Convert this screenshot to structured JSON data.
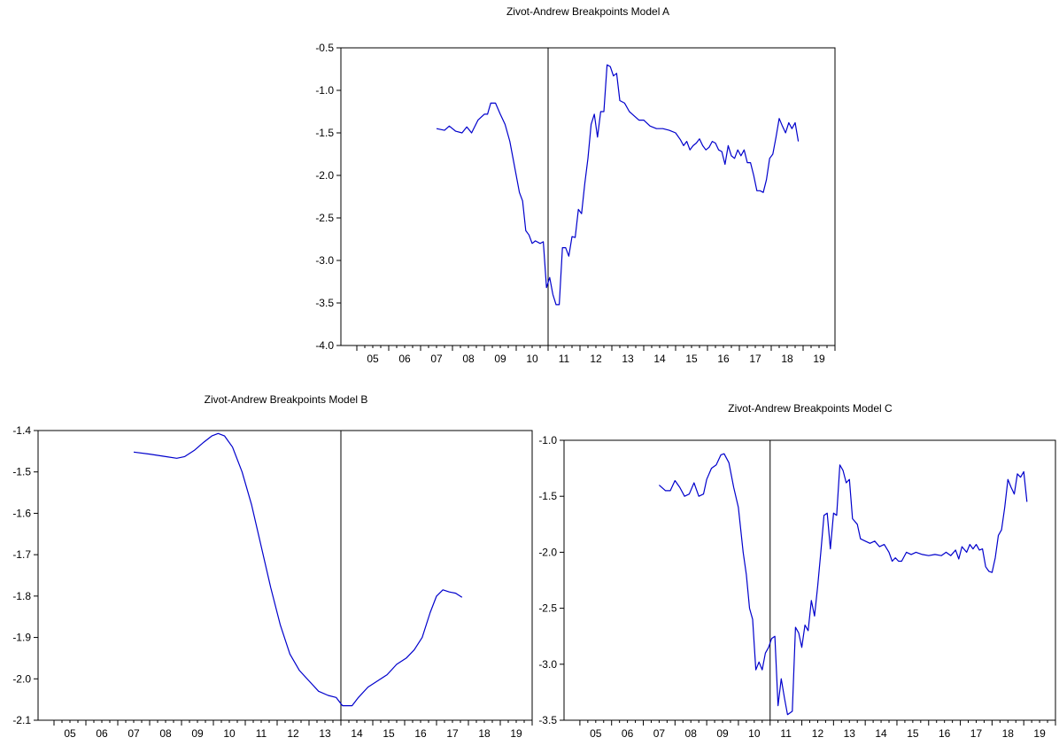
{
  "chart_data": [
    {
      "type": "line",
      "title": "Zivot-Andrew Breakpoints Model A",
      "xlabel": "",
      "ylabel": "",
      "x_range": [
        2004.5,
        2020.0
      ],
      "ylim": [
        -4.0,
        -0.5
      ],
      "y_ticks": [
        "-0.5",
        "-1.0",
        "-1.5",
        "-2.0",
        "-2.5",
        "-3.0",
        "-3.5",
        "-4.0"
      ],
      "x_ticks": [
        "05",
        "06",
        "07",
        "08",
        "09",
        "10",
        "11",
        "12",
        "13",
        "14",
        "15",
        "16",
        "17",
        "18",
        "19"
      ],
      "breakpoint": 2011.0,
      "grid": false,
      "series": [
        {
          "color": "#0000cc",
          "points": [
            [
              2007.5,
              -1.45
            ],
            [
              2007.75,
              -1.47
            ],
            [
              2007.9,
              -1.42
            ],
            [
              2008.1,
              -1.48
            ],
            [
              2008.3,
              -1.5
            ],
            [
              2008.45,
              -1.43
            ],
            [
              2008.6,
              -1.5
            ],
            [
              2008.8,
              -1.35
            ],
            [
              2009.0,
              -1.28
            ],
            [
              2009.1,
              -1.28
            ],
            [
              2009.2,
              -1.15
            ],
            [
              2009.35,
              -1.15
            ],
            [
              2009.5,
              -1.28
            ],
            [
              2009.65,
              -1.4
            ],
            [
              2009.8,
              -1.6
            ],
            [
              2009.95,
              -1.9
            ],
            [
              2010.1,
              -2.2
            ],
            [
              2010.2,
              -2.3
            ],
            [
              2010.3,
              -2.65
            ],
            [
              2010.4,
              -2.7
            ],
            [
              2010.5,
              -2.8
            ],
            [
              2010.6,
              -2.77
            ],
            [
              2010.75,
              -2.8
            ],
            [
              2010.85,
              -2.78
            ],
            [
              2010.95,
              -3.32
            ],
            [
              2011.05,
              -3.2
            ],
            [
              2011.15,
              -3.4
            ],
            [
              2011.25,
              -3.52
            ],
            [
              2011.35,
              -3.52
            ],
            [
              2011.45,
              -2.85
            ],
            [
              2011.55,
              -2.85
            ],
            [
              2011.65,
              -2.95
            ],
            [
              2011.75,
              -2.72
            ],
            [
              2011.85,
              -2.73
            ],
            [
              2011.95,
              -2.4
            ],
            [
              2012.05,
              -2.45
            ],
            [
              2012.15,
              -2.1
            ],
            [
              2012.25,
              -1.8
            ],
            [
              2012.35,
              -1.4
            ],
            [
              2012.45,
              -1.28
            ],
            [
              2012.55,
              -1.55
            ],
            [
              2012.65,
              -1.25
            ],
            [
              2012.75,
              -1.25
            ],
            [
              2012.85,
              -0.7
            ],
            [
              2012.95,
              -0.72
            ],
            [
              2013.05,
              -0.83
            ],
            [
              2013.15,
              -0.8
            ],
            [
              2013.25,
              -1.12
            ],
            [
              2013.4,
              -1.15
            ],
            [
              2013.55,
              -1.25
            ],
            [
              2013.7,
              -1.3
            ],
            [
              2013.85,
              -1.35
            ],
            [
              2014.0,
              -1.35
            ],
            [
              2014.2,
              -1.42
            ],
            [
              2014.4,
              -1.45
            ],
            [
              2014.6,
              -1.45
            ],
            [
              2014.8,
              -1.47
            ],
            [
              2015.0,
              -1.5
            ],
            [
              2015.15,
              -1.58
            ],
            [
              2015.25,
              -1.65
            ],
            [
              2015.35,
              -1.6
            ],
            [
              2015.45,
              -1.7
            ],
            [
              2015.55,
              -1.65
            ],
            [
              2015.65,
              -1.62
            ],
            [
              2015.75,
              -1.57
            ],
            [
              2015.85,
              -1.65
            ],
            [
              2015.95,
              -1.7
            ],
            [
              2016.05,
              -1.67
            ],
            [
              2016.15,
              -1.6
            ],
            [
              2016.25,
              -1.62
            ],
            [
              2016.35,
              -1.7
            ],
            [
              2016.45,
              -1.72
            ],
            [
              2016.55,
              -1.87
            ],
            [
              2016.65,
              -1.65
            ],
            [
              2016.75,
              -1.77
            ],
            [
              2016.85,
              -1.8
            ],
            [
              2016.95,
              -1.7
            ],
            [
              2017.05,
              -1.77
            ],
            [
              2017.15,
              -1.7
            ],
            [
              2017.25,
              -1.85
            ],
            [
              2017.35,
              -1.85
            ],
            [
              2017.45,
              -2.0
            ],
            [
              2017.55,
              -2.18
            ],
            [
              2017.65,
              -2.18
            ],
            [
              2017.75,
              -2.2
            ],
            [
              2017.85,
              -2.05
            ],
            [
              2017.95,
              -1.8
            ],
            [
              2018.05,
              -1.75
            ],
            [
              2018.15,
              -1.55
            ],
            [
              2018.25,
              -1.33
            ],
            [
              2018.35,
              -1.42
            ],
            [
              2018.45,
              -1.5
            ],
            [
              2018.55,
              -1.38
            ],
            [
              2018.65,
              -1.45
            ],
            [
              2018.75,
              -1.38
            ],
            [
              2018.85,
              -1.6
            ]
          ]
        }
      ]
    },
    {
      "type": "line",
      "title": "Zivot-Andrew Breakpoints Model B",
      "xlabel": "",
      "ylabel": "",
      "x_range": [
        2004.5,
        2020.0
      ],
      "ylim": [
        -2.1,
        -1.4
      ],
      "y_ticks": [
        "-1.4",
        "-1.5",
        "-1.6",
        "-1.7",
        "-1.8",
        "-1.9",
        "-2.0",
        "-2.1"
      ],
      "x_ticks": [
        "05",
        "06",
        "07",
        "08",
        "09",
        "10",
        "11",
        "12",
        "13",
        "14",
        "15",
        "16",
        "17",
        "18",
        "19"
      ],
      "breakpoint": 2014.0,
      "grid": false,
      "series": [
        {
          "color": "#0000cc",
          "points": [
            [
              2007.5,
              -1.452
            ],
            [
              2008.0,
              -1.457
            ],
            [
              2008.5,
              -1.463
            ],
            [
              2008.85,
              -1.467
            ],
            [
              2009.1,
              -1.463
            ],
            [
              2009.4,
              -1.448
            ],
            [
              2009.7,
              -1.428
            ],
            [
              2009.95,
              -1.413
            ],
            [
              2010.15,
              -1.407
            ],
            [
              2010.35,
              -1.413
            ],
            [
              2010.6,
              -1.44
            ],
            [
              2010.9,
              -1.5
            ],
            [
              2011.2,
              -1.58
            ],
            [
              2011.5,
              -1.68
            ],
            [
              2011.8,
              -1.78
            ],
            [
              2012.1,
              -1.87
            ],
            [
              2012.4,
              -1.94
            ],
            [
              2012.7,
              -1.98
            ],
            [
              2013.0,
              -2.005
            ],
            [
              2013.3,
              -2.03
            ],
            [
              2013.6,
              -2.04
            ],
            [
              2013.85,
              -2.045
            ],
            [
              2014.05,
              -2.065
            ],
            [
              2014.35,
              -2.065
            ],
            [
              2014.55,
              -2.045
            ],
            [
              2014.85,
              -2.02
            ],
            [
              2015.15,
              -2.005
            ],
            [
              2015.45,
              -1.99
            ],
            [
              2015.75,
              -1.965
            ],
            [
              2016.05,
              -1.95
            ],
            [
              2016.3,
              -1.93
            ],
            [
              2016.55,
              -1.9
            ],
            [
              2016.8,
              -1.84
            ],
            [
              2017.0,
              -1.8
            ],
            [
              2017.2,
              -1.785
            ],
            [
              2017.4,
              -1.79
            ],
            [
              2017.6,
              -1.793
            ],
            [
              2017.8,
              -1.803
            ]
          ]
        }
      ]
    },
    {
      "type": "line",
      "title": "Zivot-Andrew Breakpoints Model C",
      "xlabel": "",
      "ylabel": "",
      "x_range": [
        2004.5,
        2020.0
      ],
      "ylim": [
        -3.5,
        -1.0
      ],
      "y_ticks": [
        "-1.0",
        "-1.5",
        "-2.0",
        "-2.5",
        "-3.0",
        "-3.5"
      ],
      "x_ticks": [
        "05",
        "06",
        "07",
        "08",
        "09",
        "10",
        "11",
        "12",
        "13",
        "14",
        "15",
        "16",
        "17",
        "18",
        "19"
      ],
      "breakpoint": 2011.0,
      "grid": false,
      "series": [
        {
          "color": "#0000cc",
          "points": [
            [
              2007.5,
              -1.4
            ],
            [
              2007.7,
              -1.45
            ],
            [
              2007.85,
              -1.45
            ],
            [
              2008.0,
              -1.36
            ],
            [
              2008.15,
              -1.42
            ],
            [
              2008.3,
              -1.5
            ],
            [
              2008.45,
              -1.48
            ],
            [
              2008.6,
              -1.38
            ],
            [
              2008.75,
              -1.5
            ],
            [
              2008.9,
              -1.48
            ],
            [
              2009.0,
              -1.35
            ],
            [
              2009.15,
              -1.25
            ],
            [
              2009.3,
              -1.22
            ],
            [
              2009.45,
              -1.13
            ],
            [
              2009.55,
              -1.12
            ],
            [
              2009.7,
              -1.2
            ],
            [
              2009.85,
              -1.42
            ],
            [
              2010.0,
              -1.6
            ],
            [
              2010.15,
              -2.0
            ],
            [
              2010.25,
              -2.2
            ],
            [
              2010.35,
              -2.5
            ],
            [
              2010.45,
              -2.6
            ],
            [
              2010.55,
              -3.05
            ],
            [
              2010.65,
              -2.98
            ],
            [
              2010.75,
              -3.05
            ],
            [
              2010.85,
              -2.9
            ],
            [
              2010.95,
              -2.85
            ],
            [
              2011.05,
              -2.77
            ],
            [
              2011.15,
              -2.75
            ],
            [
              2011.25,
              -3.37
            ],
            [
              2011.35,
              -3.13
            ],
            [
              2011.45,
              -3.3
            ],
            [
              2011.55,
              -3.45
            ],
            [
              2011.7,
              -3.42
            ],
            [
              2011.8,
              -2.67
            ],
            [
              2011.9,
              -2.72
            ],
            [
              2012.0,
              -2.85
            ],
            [
              2012.1,
              -2.65
            ],
            [
              2012.2,
              -2.7
            ],
            [
              2012.3,
              -2.43
            ],
            [
              2012.4,
              -2.57
            ],
            [
              2012.5,
              -2.3
            ],
            [
              2012.6,
              -2.0
            ],
            [
              2012.7,
              -1.67
            ],
            [
              2012.8,
              -1.65
            ],
            [
              2012.9,
              -1.97
            ],
            [
              2013.0,
              -1.65
            ],
            [
              2013.1,
              -1.67
            ],
            [
              2013.2,
              -1.22
            ],
            [
              2013.3,
              -1.27
            ],
            [
              2013.4,
              -1.38
            ],
            [
              2013.5,
              -1.35
            ],
            [
              2013.6,
              -1.7
            ],
            [
              2013.75,
              -1.75
            ],
            [
              2013.85,
              -1.88
            ],
            [
              2014.0,
              -1.9
            ],
            [
              2014.15,
              -1.92
            ],
            [
              2014.3,
              -1.9
            ],
            [
              2014.45,
              -1.95
            ],
            [
              2014.6,
              -1.93
            ],
            [
              2014.75,
              -2.0
            ],
            [
              2014.85,
              -2.08
            ],
            [
              2014.95,
              -2.05
            ],
            [
              2015.05,
              -2.08
            ],
            [
              2015.15,
              -2.08
            ],
            [
              2015.3,
              -2.0
            ],
            [
              2015.45,
              -2.02
            ],
            [
              2015.6,
              -2.0
            ],
            [
              2015.8,
              -2.02
            ],
            [
              2016.0,
              -2.03
            ],
            [
              2016.2,
              -2.02
            ],
            [
              2016.4,
              -2.03
            ],
            [
              2016.55,
              -2.0
            ],
            [
              2016.7,
              -2.03
            ],
            [
              2016.85,
              -1.98
            ],
            [
              2016.95,
              -2.06
            ],
            [
              2017.05,
              -1.95
            ],
            [
              2017.2,
              -2.0
            ],
            [
              2017.3,
              -1.93
            ],
            [
              2017.4,
              -1.97
            ],
            [
              2017.5,
              -1.93
            ],
            [
              2017.6,
              -1.98
            ],
            [
              2017.7,
              -1.97
            ],
            [
              2017.8,
              -2.13
            ],
            [
              2017.9,
              -2.17
            ],
            [
              2018.0,
              -2.18
            ],
            [
              2018.1,
              -2.05
            ],
            [
              2018.2,
              -1.85
            ],
            [
              2018.3,
              -1.8
            ],
            [
              2018.4,
              -1.6
            ],
            [
              2018.5,
              -1.35
            ],
            [
              2018.6,
              -1.42
            ],
            [
              2018.7,
              -1.48
            ],
            [
              2018.8,
              -1.3
            ],
            [
              2018.9,
              -1.33
            ],
            [
              2019.0,
              -1.28
            ],
            [
              2019.1,
              -1.55
            ]
          ]
        }
      ]
    }
  ]
}
